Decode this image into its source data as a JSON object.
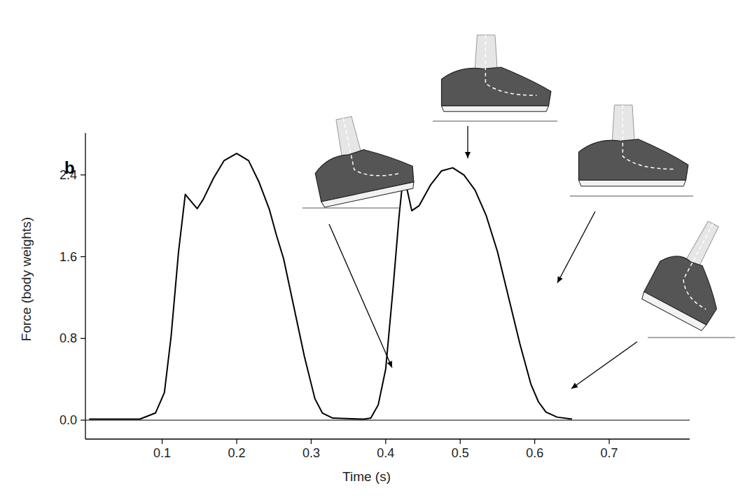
{
  "chart_data": {
    "type": "line",
    "panel_label": "b",
    "x_label": "Time (s)",
    "y_label": "Force (body weights)",
    "color": "#000000",
    "x": [
      0.002,
      0.07,
      0.091,
      0.103,
      0.112,
      0.122,
      0.131,
      0.14,
      0.147,
      0.155,
      0.169,
      0.183,
      0.2,
      0.216,
      0.23,
      0.244,
      0.253,
      0.263,
      0.277,
      0.291,
      0.305,
      0.315,
      0.329,
      0.371,
      0.38,
      0.39,
      0.4,
      0.41,
      0.418,
      0.423,
      0.428,
      0.435,
      0.445,
      0.46,
      0.475,
      0.49,
      0.505,
      0.52,
      0.535,
      0.55,
      0.565,
      0.58,
      0.595,
      0.605,
      0.615,
      0.63,
      0.65
    ],
    "values": [
      0.01,
      0.01,
      0.07,
      0.27,
      0.82,
      1.65,
      2.21,
      2.13,
      2.07,
      2.16,
      2.37,
      2.54,
      2.61,
      2.54,
      2.33,
      2.06,
      1.82,
      1.58,
      1.1,
      0.62,
      0.21,
      0.07,
      0.02,
      0.01,
      0.02,
      0.15,
      0.5,
      1.3,
      2.0,
      2.35,
      2.28,
      2.05,
      2.1,
      2.3,
      2.44,
      2.47,
      2.4,
      2.25,
      2.0,
      1.65,
      1.2,
      0.75,
      0.35,
      0.18,
      0.08,
      0.03,
      0.01
    ],
    "xlim": [
      -0.003,
      0.808
    ],
    "xticks": [
      0.1,
      0.2,
      0.3,
      0.4,
      0.5,
      0.6,
      0.7
    ],
    "ylim": [
      -0.185,
      2.81
    ],
    "yticks": [
      {
        "value": 0,
        "label": "0.0"
      },
      {
        "value": 0.8,
        "label": "0.8"
      },
      {
        "value": 1.6,
        "label": "1.6"
      },
      {
        "value": 2.4,
        "label": "2.4"
      }
    ],
    "grid": false
  }
}
